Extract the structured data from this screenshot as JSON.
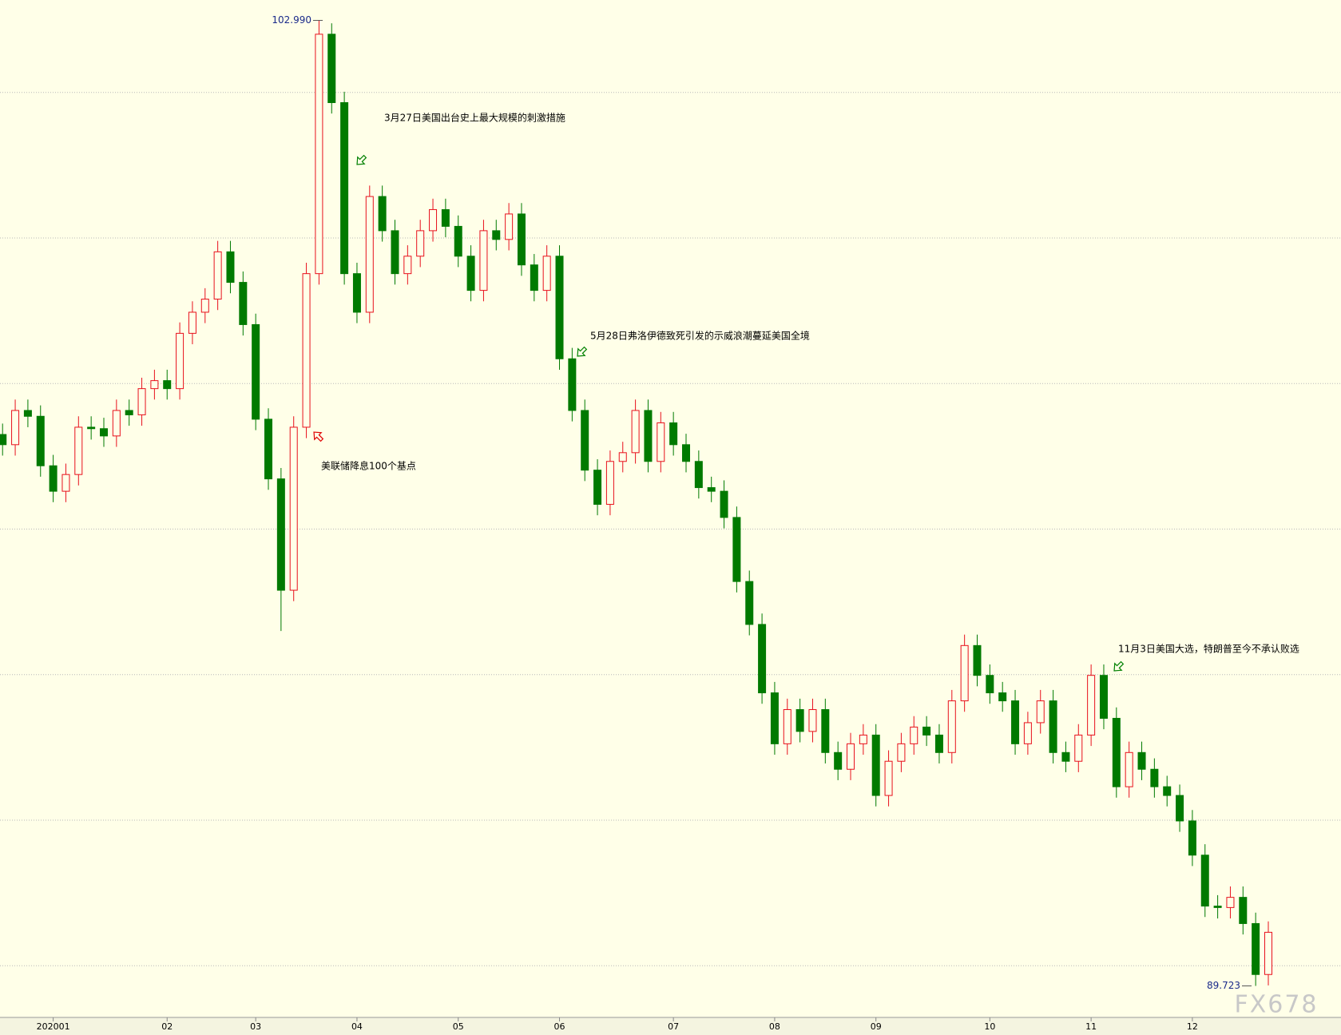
{
  "chart_data": {
    "type": "candlestick",
    "categories": [
      null,
      null,
      null,
      null,
      "202001",
      null,
      null,
      null,
      null,
      null,
      null,
      null,
      null,
      "02",
      null,
      null,
      null,
      null,
      null,
      null,
      "03",
      null,
      null,
      null,
      null,
      null,
      null,
      null,
      "04",
      null,
      null,
      null,
      null,
      null,
      null,
      null,
      "05",
      null,
      null,
      null,
      null,
      null,
      null,
      null,
      "06",
      null,
      null,
      null,
      null,
      null,
      null,
      null,
      null,
      "07",
      null,
      null,
      null,
      null,
      null,
      null,
      null,
      "08",
      null,
      null,
      null,
      null,
      null,
      null,
      null,
      "09",
      null,
      null,
      null,
      null,
      null,
      null,
      null,
      null,
      "10",
      null,
      null,
      null,
      null,
      null,
      null,
      null,
      "11",
      null,
      null,
      null,
      null,
      null,
      null,
      null,
      "12",
      null,
      null,
      null,
      null,
      null,
      null
    ],
    "open": [
      97.3,
      97.16,
      97.63,
      97.55,
      96.87,
      96.52,
      96.75,
      97.4,
      97.38,
      97.28,
      97.63,
      97.57,
      97.93,
      98.04,
      97.93,
      98.69,
      98.98,
      99.16,
      99.81,
      99.39,
      98.81,
      97.51,
      96.69,
      95.16,
      97.4,
      99.51,
      102.8,
      101.86,
      99.51,
      98.98,
      100.57,
      100.1,
      99.51,
      99.75,
      100.1,
      100.39,
      100.16,
      99.75,
      99.28,
      100.1,
      99.98,
      100.33,
      99.63,
      99.28,
      99.75,
      98.34,
      97.63,
      96.81,
      96.34,
      96.93,
      97.05,
      97.63,
      96.93,
      97.46,
      97.16,
      96.93,
      96.57,
      96.52,
      96.16,
      95.28,
      94.69,
      93.75,
      93.05,
      93.52,
      93.22,
      93.52,
      92.93,
      92.7,
      93.05,
      93.17,
      92.34,
      92.81,
      93.05,
      93.28,
      93.17,
      92.93,
      93.64,
      94.4,
      93.99,
      93.75,
      93.64,
      93.05,
      93.34,
      93.64,
      92.93,
      92.81,
      93.17,
      93.99,
      93.4,
      92.46,
      92.93,
      92.7,
      92.46,
      92.34,
      91.99,
      91.52,
      90.82,
      90.8,
      90.94,
      90.58,
      89.88
    ],
    "high": [
      97.45,
      97.78,
      97.78,
      97.7,
      97.02,
      96.9,
      97.55,
      97.55,
      97.53,
      97.78,
      97.78,
      98.08,
      98.19,
      98.19,
      98.84,
      99.13,
      99.31,
      99.96,
      99.96,
      99.54,
      98.96,
      97.66,
      96.84,
      97.55,
      99.66,
      102.99,
      102.95,
      102.01,
      99.66,
      100.72,
      100.72,
      100.25,
      99.9,
      100.25,
      100.54,
      100.54,
      100.31,
      99.9,
      100.25,
      100.25,
      100.48,
      100.48,
      99.78,
      99.9,
      99.9,
      98.49,
      97.78,
      96.96,
      97.08,
      97.2,
      97.78,
      97.78,
      97.61,
      97.61,
      97.31,
      97.08,
      96.72,
      96.67,
      96.31,
      95.43,
      94.84,
      93.9,
      93.67,
      93.67,
      93.67,
      93.67,
      93.08,
      93.2,
      93.32,
      93.32,
      92.96,
      93.2,
      93.43,
      93.43,
      93.32,
      93.79,
      94.55,
      94.55,
      94.14,
      93.9,
      93.79,
      93.49,
      93.79,
      93.79,
      93.08,
      93.32,
      94.14,
      94.14,
      93.55,
      93.08,
      93.08,
      92.85,
      92.61,
      92.49,
      92.14,
      91.67,
      90.97,
      91.09,
      91.09,
      90.73,
      90.61
    ],
    "low": [
      97.01,
      97.01,
      97.4,
      96.72,
      96.37,
      96.37,
      96.6,
      97.23,
      97.13,
      97.13,
      97.42,
      97.42,
      97.78,
      97.78,
      97.78,
      98.54,
      98.83,
      99.01,
      99.24,
      98.66,
      97.36,
      96.54,
      94.6,
      95.01,
      97.25,
      99.36,
      101.71,
      99.36,
      98.83,
      98.83,
      99.95,
      99.36,
      99.36,
      99.6,
      99.95,
      100.01,
      99.6,
      99.13,
      99.13,
      99.83,
      99.83,
      99.48,
      99.13,
      99.13,
      98.19,
      97.48,
      96.66,
      96.19,
      96.19,
      96.78,
      96.9,
      96.78,
      96.78,
      97.01,
      96.78,
      96.42,
      96.37,
      96.01,
      95.13,
      94.54,
      93.6,
      92.9,
      92.9,
      93.07,
      93.07,
      92.78,
      92.55,
      92.55,
      92.9,
      92.19,
      92.19,
      92.66,
      92.9,
      93.02,
      92.78,
      92.78,
      93.49,
      93.84,
      93.6,
      93.49,
      92.9,
      92.9,
      93.19,
      92.78,
      92.66,
      92.66,
      93.02,
      93.25,
      92.31,
      92.31,
      92.55,
      92.31,
      92.19,
      91.84,
      91.37,
      90.67,
      90.65,
      90.65,
      90.43,
      89.723,
      89.73
    ],
    "close": [
      97.16,
      97.63,
      97.55,
      96.87,
      96.52,
      96.75,
      97.4,
      97.38,
      97.28,
      97.63,
      97.57,
      97.93,
      98.04,
      97.93,
      98.69,
      98.98,
      99.16,
      99.81,
      99.39,
      98.81,
      97.51,
      96.69,
      95.16,
      97.4,
      99.51,
      102.8,
      101.86,
      99.51,
      98.98,
      100.57,
      100.1,
      99.51,
      99.75,
      100.1,
      100.39,
      100.16,
      99.75,
      99.28,
      100.1,
      99.98,
      100.33,
      99.63,
      99.28,
      99.75,
      98.34,
      97.63,
      96.81,
      96.34,
      96.93,
      97.05,
      97.63,
      96.93,
      97.46,
      97.16,
      96.93,
      96.57,
      96.52,
      96.16,
      95.28,
      94.69,
      93.75,
      93.05,
      93.52,
      93.22,
      93.52,
      92.93,
      92.7,
      93.05,
      93.17,
      92.34,
      92.81,
      93.05,
      93.28,
      93.17,
      92.93,
      93.64,
      94.4,
      93.99,
      93.75,
      93.64,
      93.05,
      93.34,
      93.64,
      92.93,
      92.81,
      93.17,
      93.99,
      93.4,
      92.46,
      92.93,
      92.7,
      92.46,
      92.34,
      91.99,
      91.52,
      90.82,
      90.8,
      90.94,
      90.58,
      89.88,
      90.46
    ],
    "up_color": "#e8101c",
    "down_color": "#007a00",
    "ylim": [
      89.29,
      103.27
    ],
    "yticks": [
      90,
      92,
      94,
      96,
      98,
      100,
      102
    ],
    "grid": true,
    "high_marker": {
      "value": 102.99,
      "label": "102.990"
    },
    "low_marker": {
      "value": 89.723,
      "label": "89.723"
    },
    "annotations": [
      "3月27日美国出台史上最大规模的刺激措施",
      "5月28日弗洛伊德致死引发的示威浪潮蔓延美国全境",
      "美联储降息100个基点",
      "11月3日美国大选，特朗普至今不承认败选"
    ],
    "watermark": "FX678"
  }
}
